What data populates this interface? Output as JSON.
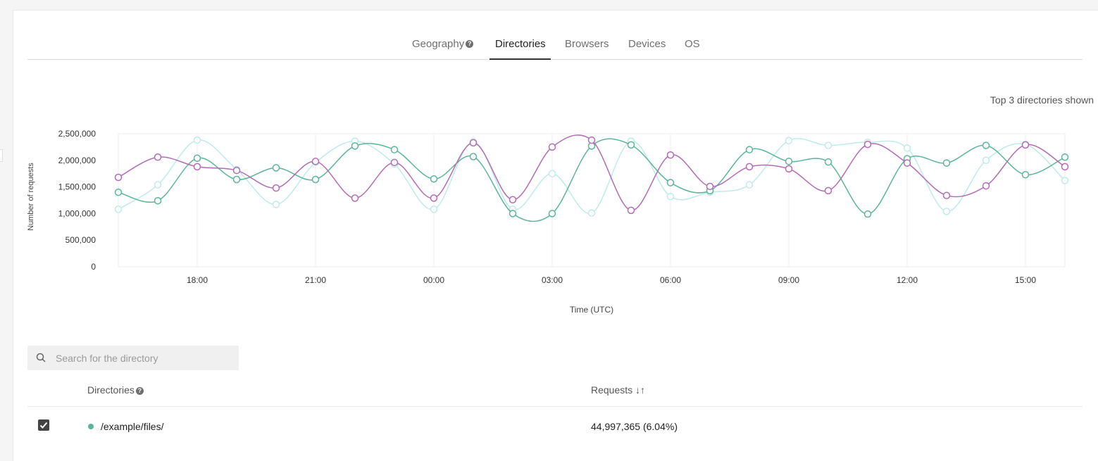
{
  "tabs": [
    {
      "label": "Geography",
      "has_help": true,
      "active": false
    },
    {
      "label": "Directories",
      "has_help": false,
      "active": true
    },
    {
      "label": "Browsers",
      "has_help": false,
      "active": false
    },
    {
      "label": "Devices",
      "has_help": false,
      "active": false
    },
    {
      "label": "OS",
      "has_help": false,
      "active": false
    }
  ],
  "shown_note": "Top 3 directories shown",
  "search": {
    "placeholder": "Search for the directory",
    "value": "",
    "icon": "search-icon"
  },
  "table": {
    "headers": {
      "directories": "Directories",
      "requests": "Requests",
      "sort_icon": "↓↑"
    },
    "rows": [
      {
        "checked": true,
        "color": "#5bb596",
        "directory": "/example/files/",
        "requests": "44,997,365 (6.04%)"
      }
    ]
  },
  "chart_data": {
    "type": "line",
    "ylabel": "Number of requests",
    "xlabel": "Time (UTC)",
    "ylim": [
      0,
      2500000
    ],
    "y_ticks": [
      "0",
      "500,000",
      "1,000,000",
      "1,500,000",
      "2,000,000",
      "2,500,000"
    ],
    "x_ticks": [
      "18:00",
      "21:00",
      "00:00",
      "03:00",
      "06:00",
      "09:00",
      "12:00",
      "15:00"
    ],
    "x": [
      "16:00",
      "17:00",
      "18:00",
      "19:00",
      "20:00",
      "21:00",
      "22:00",
      "23:00",
      "00:00",
      "01:00",
      "02:00",
      "03:00",
      "04:00",
      "05:00",
      "06:00",
      "07:00",
      "08:00",
      "09:00",
      "10:00",
      "11:00",
      "12:00",
      "13:00",
      "14:00",
      "15:00",
      "16:00"
    ],
    "series": [
      {
        "color": "#bfeaea",
        "values": [
          1080000,
          1540000,
          2380000,
          1830000,
          1170000,
          1960000,
          2360000,
          1930000,
          1080000,
          2350000,
          1080000,
          1750000,
          1010000,
          2360000,
          1320000,
          1400000,
          1540000,
          2370000,
          2280000,
          2340000,
          2230000,
          1040000,
          2000000,
          2300000,
          1620000
        ]
      },
      {
        "color": "#5bb596",
        "values": [
          1400000,
          1240000,
          2040000,
          1640000,
          1860000,
          1640000,
          2270000,
          2200000,
          1650000,
          2070000,
          1000000,
          1000000,
          2270000,
          2290000,
          1580000,
          1430000,
          2200000,
          1980000,
          1970000,
          990000,
          2030000,
          1950000,
          2280000,
          1730000,
          2060000
        ]
      },
      {
        "color": "#b36bb5",
        "values": [
          1680000,
          2060000,
          1880000,
          1810000,
          1480000,
          1980000,
          1290000,
          1960000,
          1290000,
          2330000,
          1260000,
          2250000,
          2380000,
          1060000,
          2100000,
          1510000,
          1880000,
          1840000,
          1430000,
          2300000,
          1950000,
          1340000,
          1520000,
          2290000,
          1880000
        ]
      }
    ]
  }
}
